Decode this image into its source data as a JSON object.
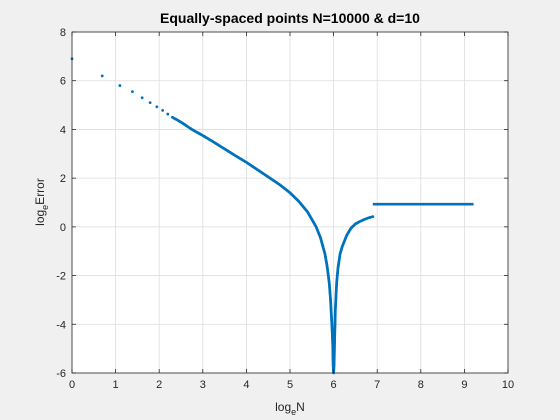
{
  "chart_data": {
    "type": "scatter",
    "title": "Equally-spaced points N=10000 & d=10",
    "xlabel": {
      "main": "log",
      "sub": "e",
      "rest": "N"
    },
    "ylabel": {
      "main": "log",
      "sub": "e",
      "rest": "Error"
    },
    "xlim": [
      0,
      10
    ],
    "ylim": [
      -6,
      8
    ],
    "xticks": [
      0,
      1,
      2,
      3,
      4,
      5,
      6,
      7,
      8,
      9,
      10
    ],
    "yticks": [
      -6,
      -4,
      -2,
      0,
      2,
      4,
      6,
      8
    ],
    "grid": true,
    "marker_color": "#0072BD",
    "series": [
      {
        "values_description_free": true,
        "x": [
          0,
          0.693,
          1.099,
          1.386,
          1.609,
          1.792,
          1.946,
          2.079,
          2.197,
          2.303,
          2.5,
          2.75,
          3.0,
          3.25,
          3.5,
          3.75,
          4.0,
          4.25,
          4.5,
          4.75,
          5.0,
          5.2,
          5.4,
          5.6,
          5.7,
          5.8,
          5.85,
          5.9,
          5.93,
          5.96,
          5.98,
          5.99,
          6.0,
          6.01,
          6.02,
          6.04,
          6.07,
          6.1,
          6.15,
          6.2,
          6.3,
          6.4,
          6.5,
          6.6,
          6.7,
          6.8,
          6.9
        ],
        "y": [
          6.9,
          6.2,
          5.8,
          5.55,
          5.3,
          5.1,
          4.93,
          4.78,
          4.63,
          4.5,
          4.3,
          4.0,
          3.75,
          3.48,
          3.2,
          2.92,
          2.65,
          2.35,
          2.05,
          1.75,
          1.4,
          1.05,
          0.62,
          0.0,
          -0.45,
          -1.1,
          -1.6,
          -2.3,
          -3.0,
          -4.0,
          -4.8,
          -5.7,
          -6.0,
          -5.7,
          -4.9,
          -3.4,
          -2.3,
          -1.7,
          -1.1,
          -0.8,
          -0.35,
          -0.05,
          0.12,
          0.22,
          0.3,
          0.37,
          0.42
        ]
      },
      {
        "x_range": [
          6.9,
          9.21
        ],
        "y": 0.93
      }
    ]
  }
}
